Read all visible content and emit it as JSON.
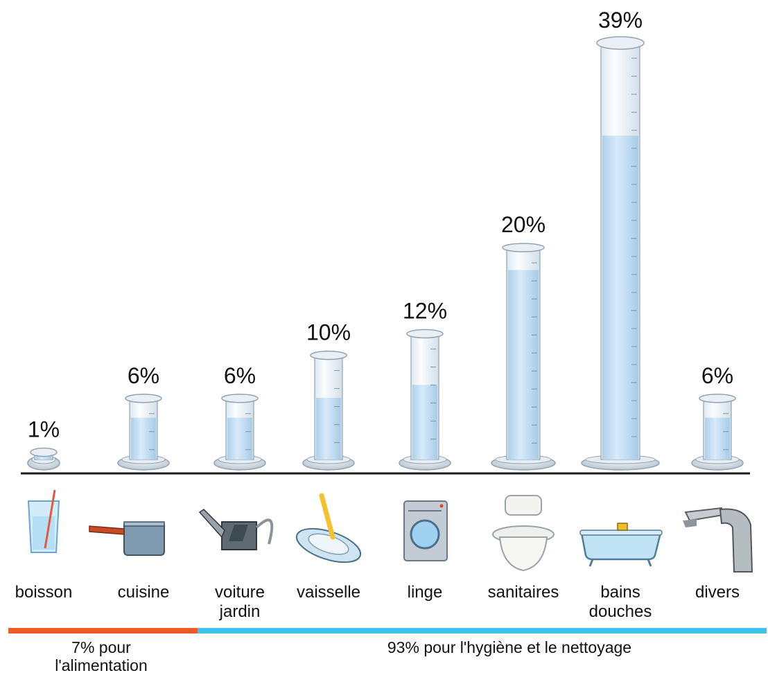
{
  "chart_data": {
    "type": "bar",
    "categories": [
      [
        "boisson"
      ],
      [
        "cuisine"
      ],
      [
        "voiture",
        "jardin"
      ],
      [
        "vaisselle"
      ],
      [
        "linge"
      ],
      [
        "sanitaires"
      ],
      [
        "bains",
        "douches"
      ],
      [
        "divers"
      ]
    ],
    "values": [
      1,
      6,
      6,
      10,
      12,
      20,
      39,
      6
    ],
    "value_labels": [
      "1%",
      "6%",
      "6%",
      "10%",
      "12%",
      "20%",
      "39%",
      "6%"
    ],
    "icons": [
      "glass-icon",
      "saucepan-icon",
      "watering-can-icon",
      "plate-icon",
      "washing-machine-icon",
      "toilet-icon",
      "bathtub-icon",
      "faucet-icon"
    ],
    "groups": [
      {
        "label_lines": [
          "7% pour",
          "l'alimentation"
        ],
        "color": "#f05a28",
        "first": 0,
        "last": 1
      },
      {
        "label_lines": [
          "93% pour l'hygiène et le nettoyage"
        ],
        "color": "#3ec3ea",
        "first": 2,
        "last": 7
      }
    ],
    "colors": {
      "water": "#c6e2f6",
      "glass": "#eef5fb",
      "outline": "#8fa3b4",
      "baseline": "#1a1a1a"
    }
  }
}
